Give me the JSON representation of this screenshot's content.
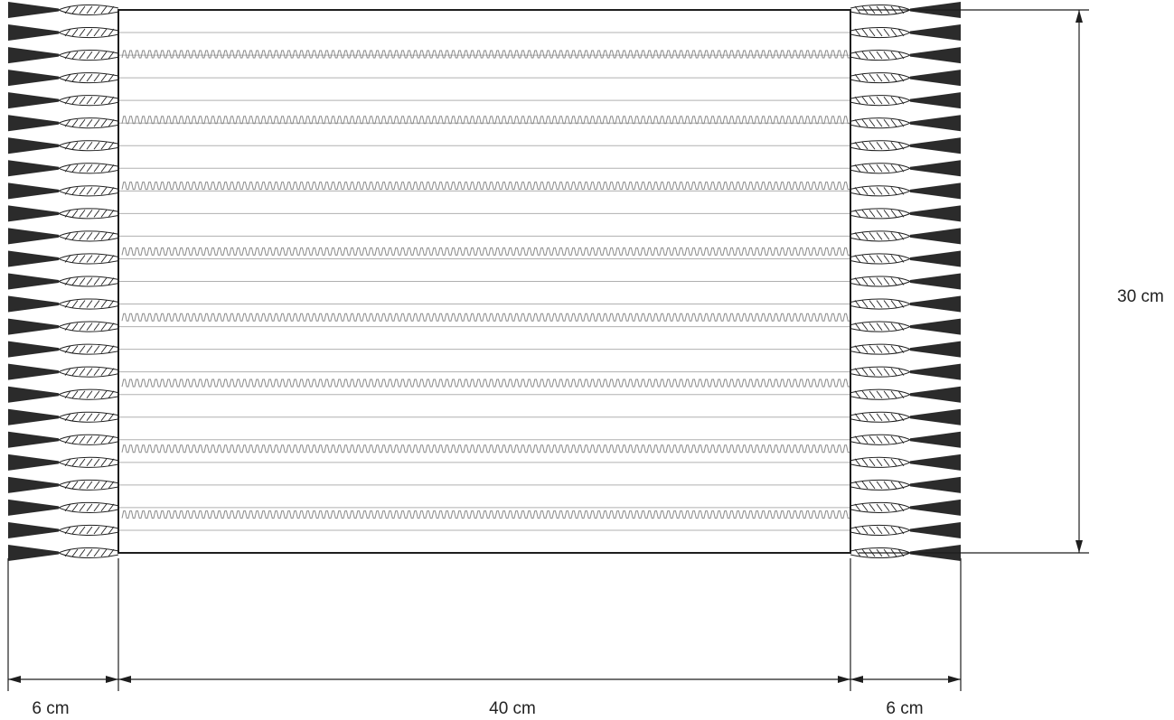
{
  "diagram": {
    "dimensions": {
      "left_fringe": "6 cm",
      "body_width": "40 cm",
      "right_fringe": "6 cm",
      "body_height": "30 cm"
    },
    "fringe_tassels_per_side": 25,
    "wavy_rows": 8,
    "colors": {
      "ink": "#1e1e1e",
      "tassel": "#2b2b2b",
      "stripe": "#b0b0b0",
      "wave": "#8a8a8a",
      "background": "#ffffff"
    }
  }
}
